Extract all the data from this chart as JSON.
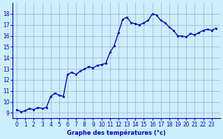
{
  "title": "Graphe des températures (°c)",
  "xlabel": "Graphe des températures (°c)",
  "x_hours": [
    0,
    0.5,
    1,
    1.5,
    2,
    2.5,
    3,
    3.5,
    4,
    4.5,
    5,
    5.5,
    6,
    6.5,
    7,
    7.5,
    8,
    8.5,
    9,
    9.5,
    10,
    10.5,
    11,
    11.5,
    12,
    12.5,
    13,
    13.5,
    14,
    14.5,
    15,
    15.5,
    16,
    16.5,
    17,
    17.5,
    18,
    18.5,
    19,
    19.5,
    20,
    20.5,
    21,
    21.5,
    22,
    22.5,
    23,
    23.5
  ],
  "y_temps": [
    9.3,
    9.1,
    9.2,
    9.4,
    9.3,
    9.5,
    9.4,
    9.5,
    10.5,
    10.8,
    10.6,
    10.5,
    12.5,
    12.7,
    12.5,
    12.8,
    13.0,
    13.2,
    13.1,
    13.3,
    13.4,
    13.5,
    14.5,
    15.1,
    16.3,
    17.5,
    17.7,
    17.2,
    17.1,
    17.0,
    17.2,
    17.4,
    18.0,
    17.9,
    17.4,
    17.2,
    16.8,
    16.5,
    16.0,
    16.0,
    15.9,
    16.2,
    16.1,
    16.3,
    16.5,
    16.6,
    16.5,
    16.7
  ],
  "line_color": "#0000cc",
  "marker_color": "#0000cc",
  "bg_color": "#cceeff",
  "grid_color": "#aaaacc",
  "axis_color": "#0000cc",
  "ylim": [
    8.5,
    19
  ],
  "xlim": [
    -0.5,
    24
  ],
  "yticks": [
    9,
    10,
    11,
    12,
    13,
    14,
    15,
    16,
    17,
    18
  ],
  "xticks": [
    0,
    1,
    2,
    3,
    4,
    5,
    6,
    7,
    8,
    9,
    10,
    11,
    12,
    13,
    14,
    15,
    16,
    17,
    18,
    19,
    20,
    21,
    22,
    23
  ],
  "marker_size": 2.5,
  "line_width": 1.0
}
